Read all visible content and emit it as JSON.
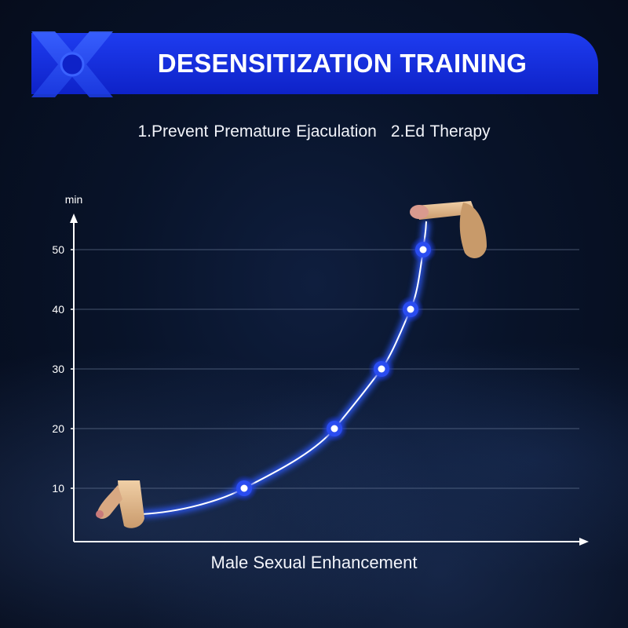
{
  "header": {
    "title": "DESENSITIZATION TRAINING",
    "logo_icon": "x-logo-icon",
    "accent_color": "#1533dc"
  },
  "subtitle": {
    "item1": "1.Prevent Premature Ejaculation",
    "item2": "2.Ed Therapy"
  },
  "chart_data": {
    "type": "line",
    "title": "",
    "xlabel": "Male Sexual Enhancement",
    "ylabel": "min",
    "yticks": [
      10,
      20,
      30,
      40,
      50
    ],
    "ylim": [
      0,
      60
    ],
    "grid": true,
    "series": [
      {
        "color": "#ffffff",
        "glow_color": "#2f5bff",
        "marked_points": [
          10,
          20,
          30,
          40,
          50
        ]
      }
    ],
    "start_icon": "flaccid-illustration-icon",
    "end_icon": "erect-illustration-icon"
  }
}
